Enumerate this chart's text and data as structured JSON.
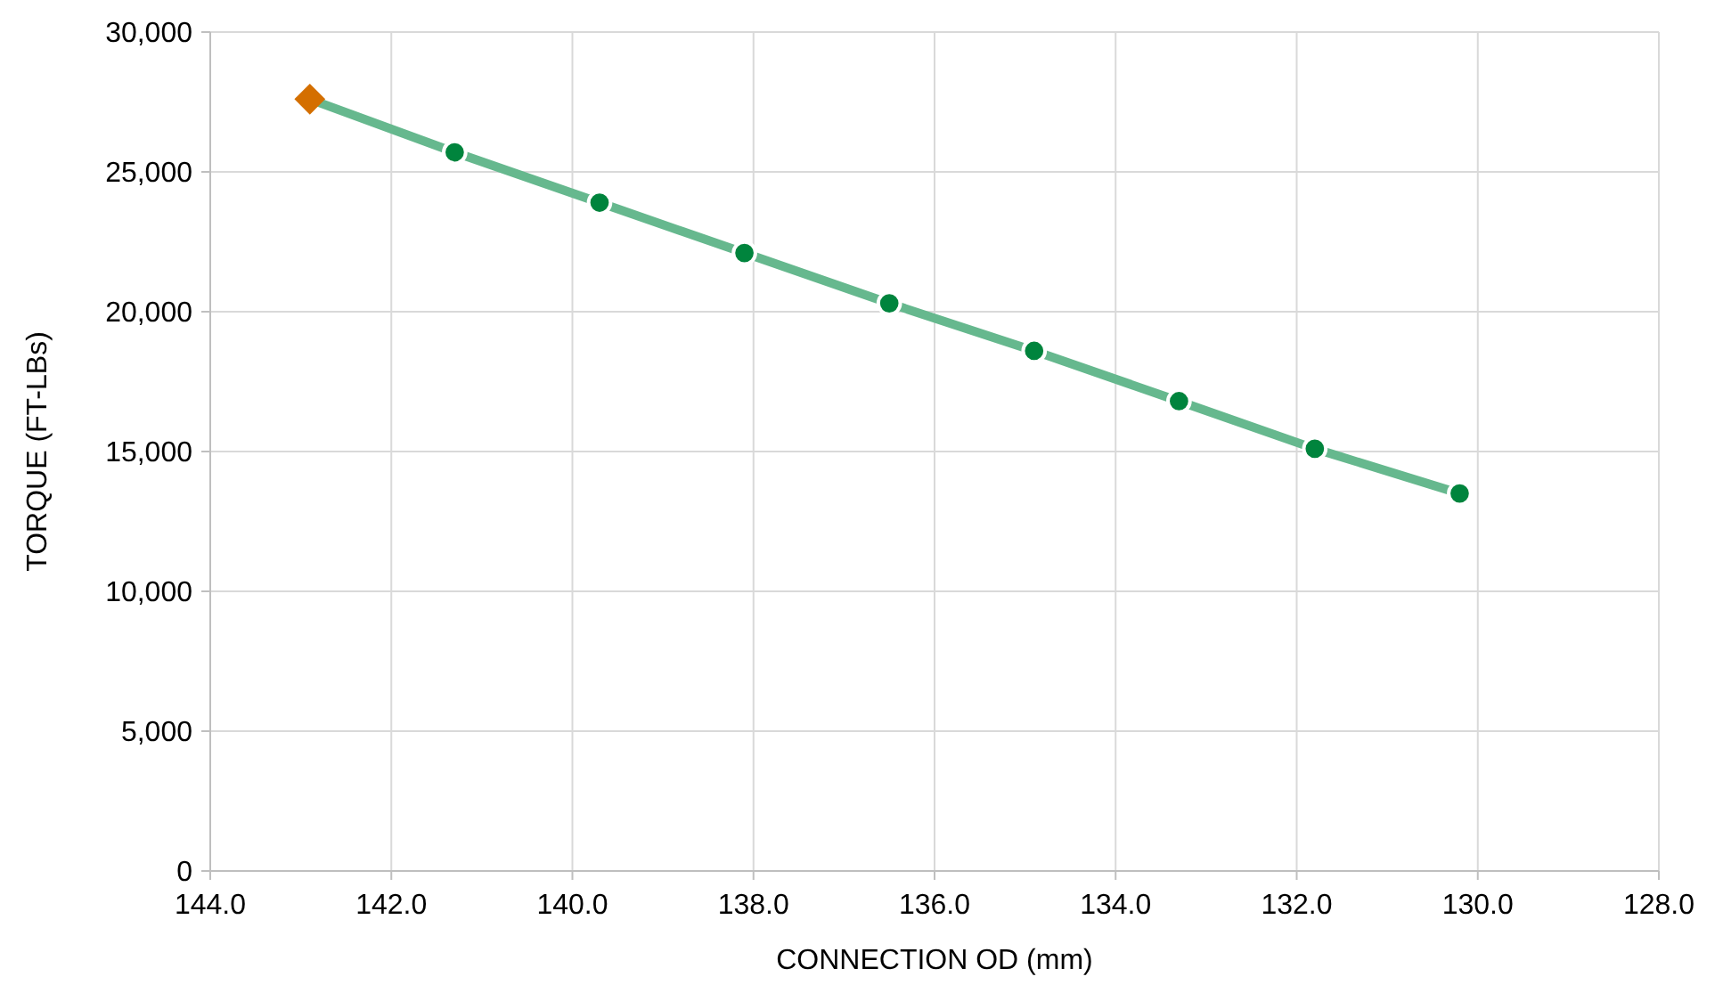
{
  "chart_data": {
    "type": "line",
    "xlabel": "CONNECTION OD (mm)",
    "ylabel": "TORQUE (FT-LBs)",
    "xlim": [
      144,
      128
    ],
    "xticks": [
      {
        "value": 144,
        "label": "144.0"
      },
      {
        "value": 142,
        "label": "142.0"
      },
      {
        "value": 140,
        "label": "140.0"
      },
      {
        "value": 138,
        "label": "138.0"
      },
      {
        "value": 136,
        "label": "136.0"
      },
      {
        "value": 134,
        "label": "134.0"
      },
      {
        "value": 132,
        "label": "132.0"
      },
      {
        "value": 130,
        "label": "130.0"
      },
      {
        "value": 128,
        "label": "128.0"
      }
    ],
    "ylim": [
      0,
      30000
    ],
    "yticks": [
      {
        "value": 0,
        "label": "0"
      },
      {
        "value": 5000,
        "label": "5,000"
      },
      {
        "value": 10000,
        "label": "10,000"
      },
      {
        "value": 15000,
        "label": "15,000"
      },
      {
        "value": 20000,
        "label": "20,000"
      },
      {
        "value": 25000,
        "label": "25,000"
      },
      {
        "value": 30000,
        "label": "30,000"
      }
    ],
    "grid": true,
    "series": [
      {
        "color": "#66b88e",
        "marker": "none",
        "line_style": "solid",
        "x": [
          142.9,
          141.3,
          139.7,
          138.1,
          136.5,
          134.9,
          133.3,
          131.8,
          130.2
        ],
        "values": [
          27600,
          25700,
          23900,
          22100,
          20300,
          18600,
          16800,
          15100,
          13500
        ]
      },
      {
        "type": "scatter",
        "color": "#00843d",
        "marker": "circle",
        "x": [
          141.3,
          139.7,
          138.1,
          136.5,
          134.9,
          133.3,
          131.8,
          130.2
        ],
        "values": [
          25700,
          23900,
          22100,
          20300,
          18600,
          16800,
          15100,
          13500
        ]
      },
      {
        "type": "scatter",
        "color": "#d46f00",
        "marker": "diamond",
        "x": [
          142.9
        ],
        "values": [
          27600
        ]
      }
    ]
  }
}
